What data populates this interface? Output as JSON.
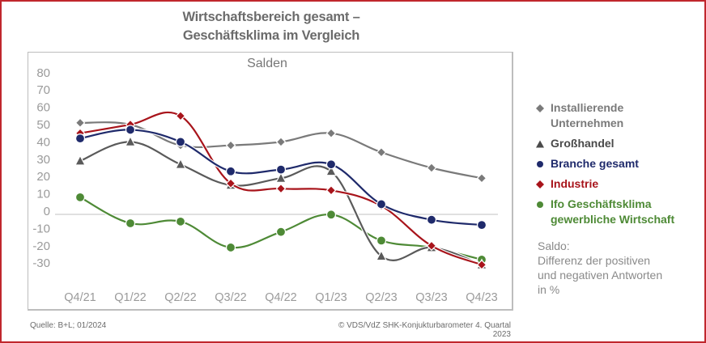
{
  "header": {
    "title_line1": "Wirtschaftsbereich gesamt –",
    "title_line2": "Geschäftsklima im Vergleich"
  },
  "chart_data": {
    "type": "line",
    "title": "Wirtschaftsbereich gesamt – Geschäftsklima im Vergleich",
    "subtitle": "Salden",
    "xlabel": "",
    "ylabel": "",
    "categories": [
      "Q4/21",
      "Q1/22",
      "Q2/22",
      "Q3/22",
      "Q4/22",
      "Q1/23",
      "Q2/23",
      "Q3/23",
      "Q4/23"
    ],
    "yticks": [
      80,
      70,
      60,
      50,
      40,
      30,
      20,
      10,
      0,
      -10,
      -20,
      -30
    ],
    "ylim": [
      -30,
      80
    ],
    "grid": false,
    "zero_line": true,
    "legend_position": "right",
    "series": [
      {
        "name": "Installierende Unternehmen",
        "color": "#7a7a7a",
        "marker": "diamond",
        "values": [
          51,
          50,
          38,
          38,
          40,
          45,
          34,
          25,
          19
        ]
      },
      {
        "name": "Großhandel",
        "color": "#5a5a5a",
        "marker": "triangle",
        "values": [
          29,
          40,
          27,
          15,
          19,
          23,
          -26,
          -21,
          -31
        ]
      },
      {
        "name": "Branche gesamt",
        "color": "#1f2a6b",
        "marker": "circle",
        "values": [
          42,
          47,
          40,
          23,
          24,
          27,
          4,
          -5,
          -8
        ]
      },
      {
        "name": "Industrie",
        "color": "#a8141b",
        "marker": "diamond",
        "values": [
          45,
          50,
          55,
          16,
          13,
          12,
          3,
          -20,
          -31
        ]
      },
      {
        "name": "Ifo Geschäftsklima gewerbliche Wirtschaft",
        "color": "#4e8a36",
        "marker": "circle",
        "values": [
          8,
          -7,
          -6,
          -21,
          -12,
          -2,
          -17,
          -21,
          -28
        ]
      }
    ]
  },
  "legend": {
    "items": [
      {
        "label_line1": "Installierende",
        "label_line2": "Unternehmen",
        "color": "#7a7a7a",
        "marker": "diamond"
      },
      {
        "label_line1": "Großhandel",
        "label_line2": "",
        "color": "#4a4a4a",
        "marker": "triangle"
      },
      {
        "label_line1": "Branche gesamt",
        "label_line2": "",
        "color": "#1f2a6b",
        "marker": "circle"
      },
      {
        "label_line1": "Industrie",
        "label_line2": "",
        "color": "#a8141b",
        "marker": "diamond"
      },
      {
        "label_line1": "Ifo Geschäftsklima",
        "label_line2": "gewerbliche Wirtschaft",
        "color": "#4e8a36",
        "marker": "circle"
      }
    ]
  },
  "note": {
    "line1": "Saldo:",
    "line2": "Differenz der positiven",
    "line3": "und negativen Antworten",
    "line4": "in %"
  },
  "footer": {
    "source": "Quelle: B+L; 01/2024",
    "copyright": "© VDS/VdZ SHK-Konjukturbarometer 4. Quartal 2023"
  },
  "colors": {
    "frame": "#c0272d",
    "title": "#6b6b6b"
  }
}
